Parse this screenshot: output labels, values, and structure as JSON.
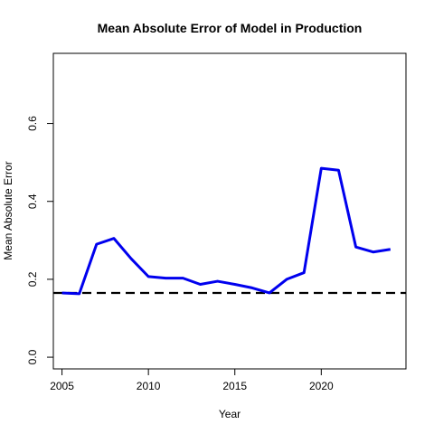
{
  "chart_data": {
    "type": "line",
    "title": "Mean Absolute Error of Model in Production",
    "xlabel": "Year",
    "ylabel": "Mean Absolute Error",
    "xlim": [
      2004.5,
      2024.9
    ],
    "ylim": [
      -0.03,
      0.78
    ],
    "x_ticks": [
      2005,
      2010,
      2015,
      2020
    ],
    "y_ticks": [
      0.0,
      0.2,
      0.4,
      0.6
    ],
    "x_tick_labels": [
      "2005",
      "2010",
      "2015",
      "2020"
    ],
    "y_tick_labels": [
      "0.0",
      "0.2",
      "0.4",
      "0.6"
    ],
    "series": [
      {
        "color": "#0000ee",
        "x": [
          2005,
          2006,
          2007,
          2008,
          2009,
          2010,
          2011,
          2012,
          2013,
          2014,
          2015,
          2016,
          2017,
          2018,
          2019,
          2020,
          2021,
          2022,
          2023,
          2024
        ],
        "values": [
          0.165,
          0.163,
          0.29,
          0.305,
          0.253,
          0.207,
          0.203,
          0.203,
          0.187,
          0.195,
          0.187,
          0.178,
          0.165,
          0.2,
          0.217,
          0.485,
          0.48,
          0.283,
          0.27,
          0.277
        ]
      }
    ],
    "reference_line": {
      "y": 0.165,
      "style": "dashed",
      "color": "#000000"
    },
    "grid": false,
    "legend": "none"
  }
}
